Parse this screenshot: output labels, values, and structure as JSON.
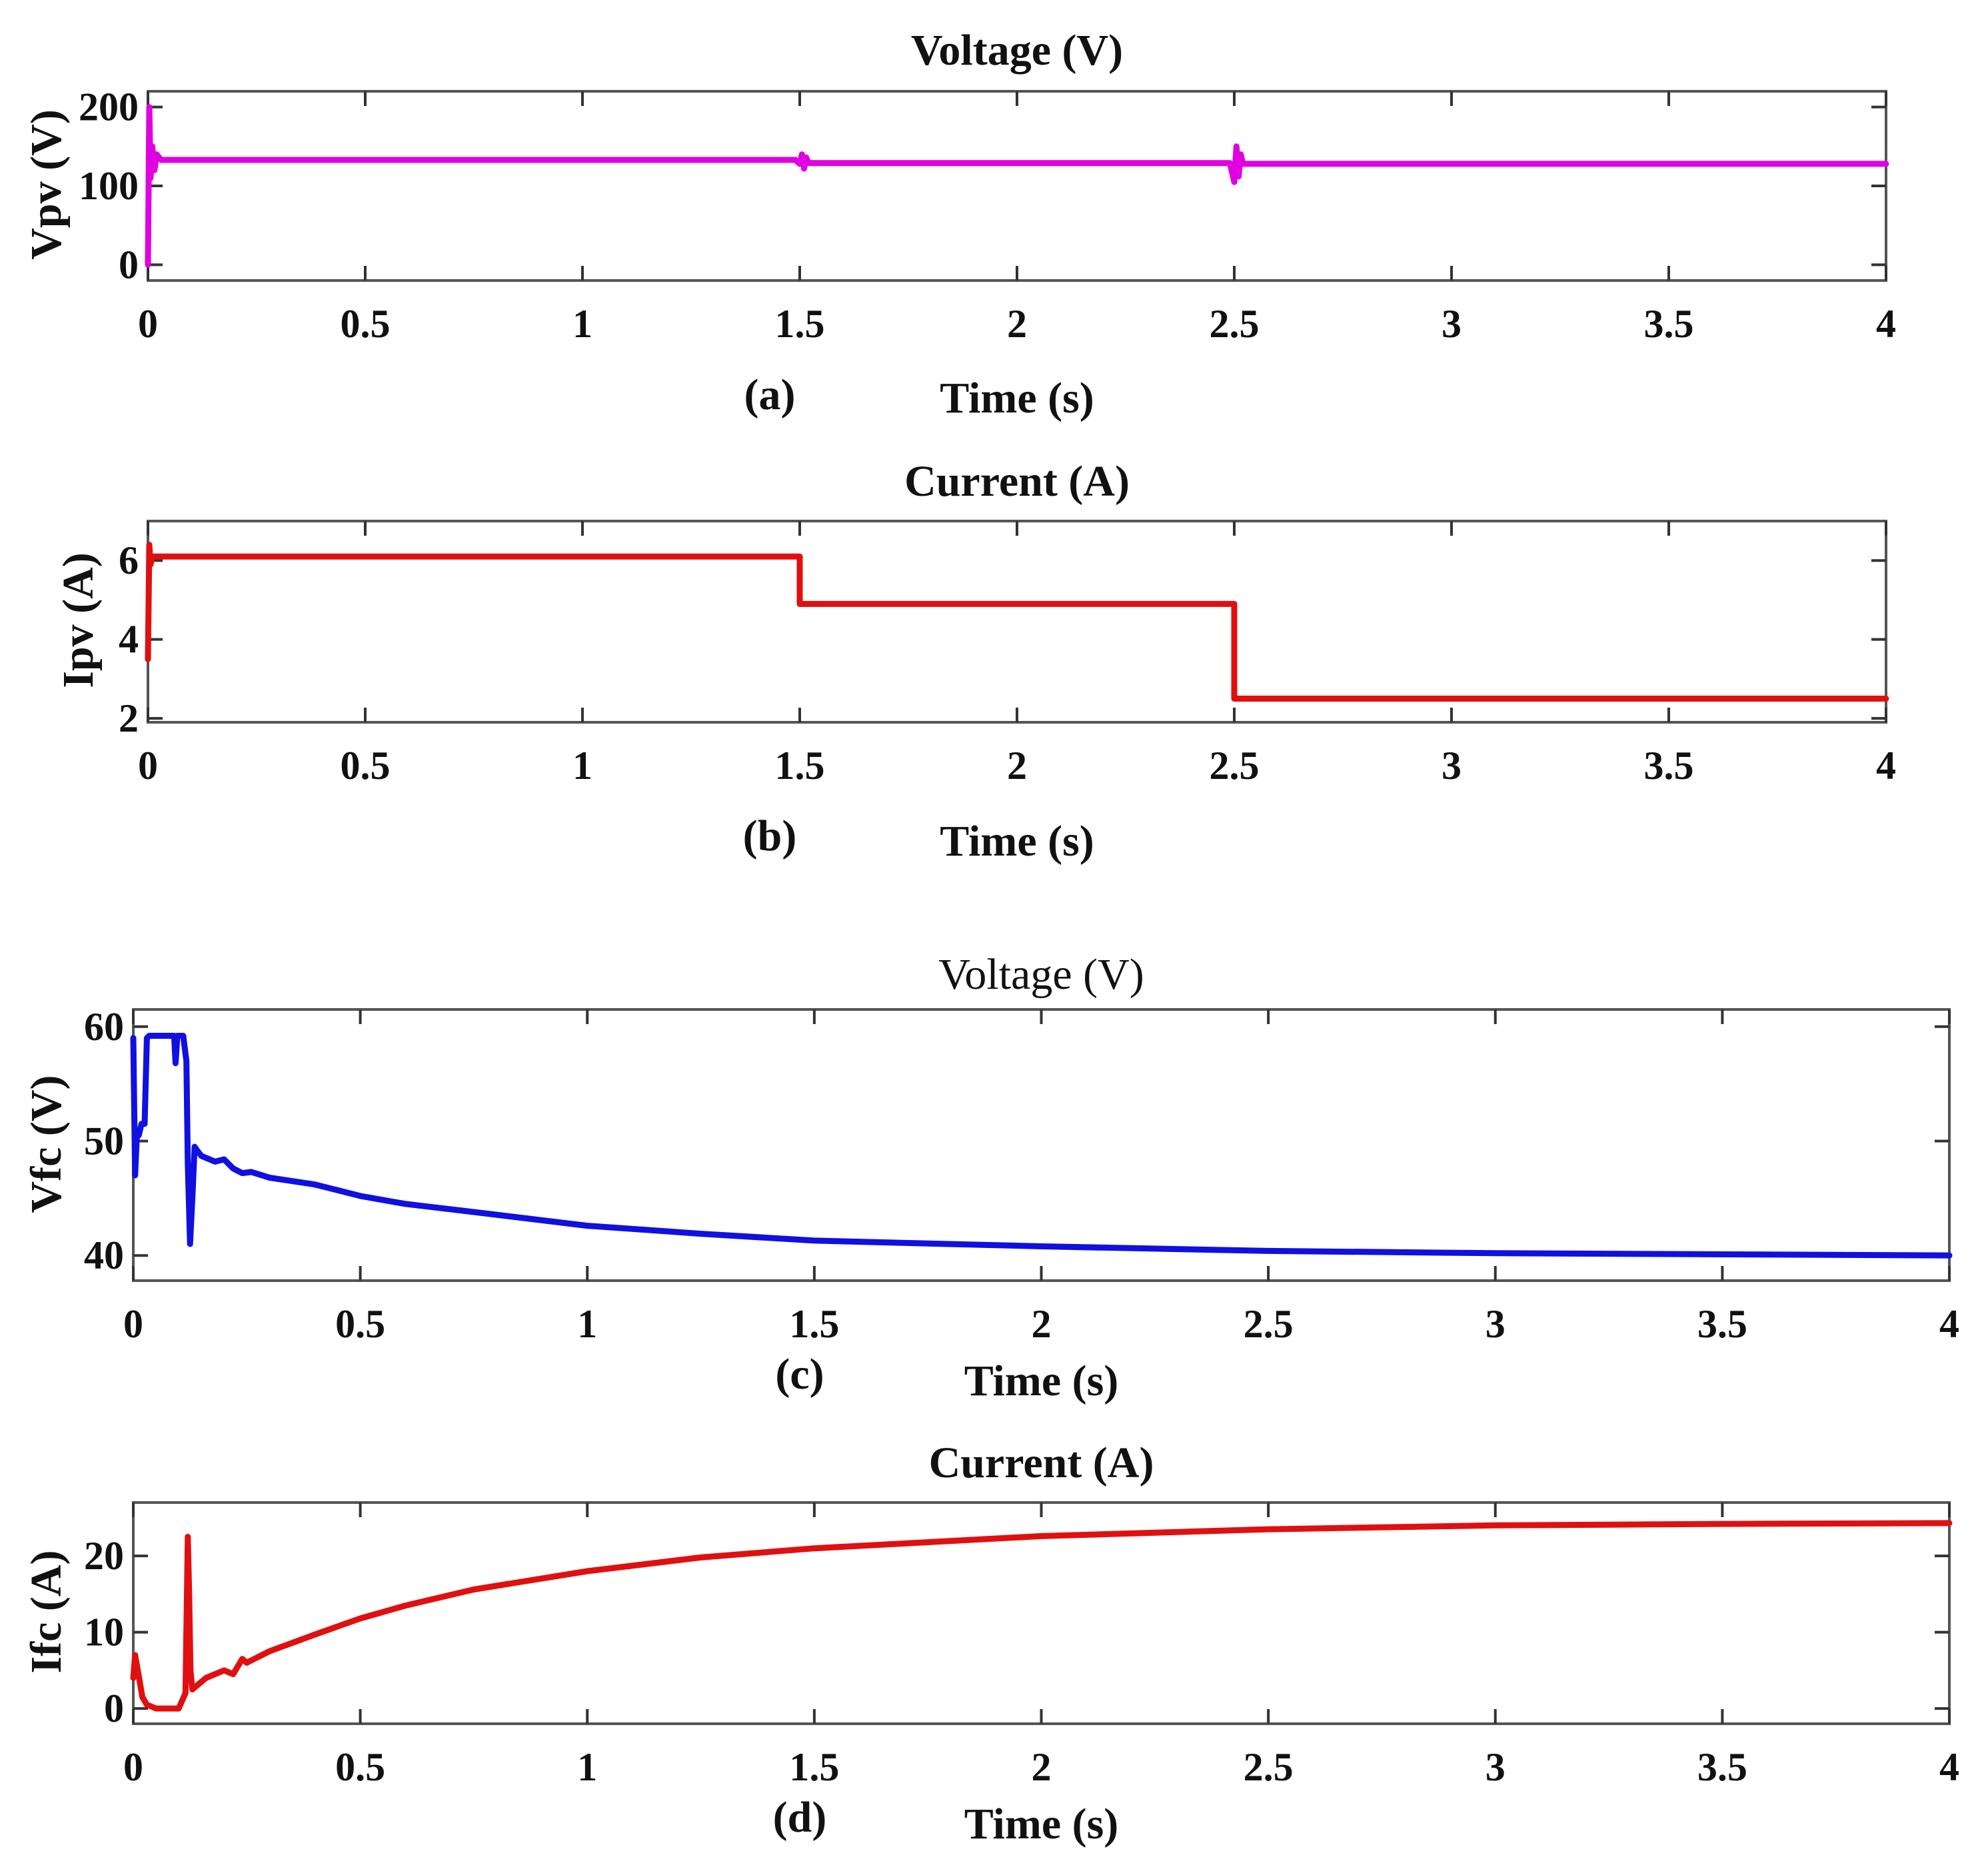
{
  "chart_data": [
    {
      "id": "a",
      "type": "line",
      "title": "Voltage (V)",
      "panel_label": "(a)",
      "xlabel": "Time (s)",
      "ylabel": "Vpv (V)",
      "xlim": [
        0,
        4
      ],
      "ylim": [
        -20,
        220
      ],
      "xticks": [
        0,
        0.5,
        1,
        1.5,
        2,
        2.5,
        3,
        3.5,
        4
      ],
      "xtick_labels": [
        "0",
        "0.5",
        "1",
        "1.5",
        "2",
        "2.5",
        "3",
        "3.5",
        "4"
      ],
      "yticks": [
        0,
        100,
        200
      ],
      "ytick_labels": [
        "0",
        "100",
        "200"
      ],
      "series": [
        {
          "name": "Vpv",
          "color": "#e000e0",
          "x": [
            0,
            0.003,
            0.006,
            0.01,
            0.015,
            0.02,
            0.03,
            0.05,
            1.49,
            1.5,
            1.505,
            1.51,
            1.515,
            1.52,
            2.49,
            2.5,
            2.505,
            2.51,
            2.515,
            2.52,
            4
          ],
          "y": [
            0,
            200,
            110,
            150,
            120,
            140,
            133,
            133,
            133,
            128,
            140,
            122,
            136,
            129,
            129,
            105,
            150,
            112,
            140,
            128,
            128
          ]
        }
      ]
    },
    {
      "id": "b",
      "type": "line",
      "title": "Current (A)",
      "panel_label": "(b)",
      "xlabel": "Time (s)",
      "ylabel": "Ipv (A)",
      "xlim": [
        0,
        4
      ],
      "ylim": [
        1.9,
        7.0
      ],
      "xticks": [
        0,
        0.5,
        1,
        1.5,
        2,
        2.5,
        3,
        3.5,
        4
      ],
      "xtick_labels": [
        "0",
        "0.5",
        "1",
        "1.5",
        "2",
        "2.5",
        "3",
        "3.5",
        "4"
      ],
      "yticks": [
        2,
        4,
        6
      ],
      "ytick_labels": [
        "2",
        "4",
        "6"
      ],
      "series": [
        {
          "name": "Ipv",
          "color": "#e01010",
          "x": [
            0,
            0.003,
            0.006,
            0.01,
            0.02,
            1.5,
            1.5,
            2.5,
            2.5,
            4
          ],
          "y": [
            3.5,
            6.4,
            5.9,
            6.1,
            6.1,
            6.1,
            4.9,
            4.9,
            2.5,
            2.5
          ]
        }
      ]
    },
    {
      "id": "c",
      "type": "line",
      "title": "Voltage (V)",
      "title_weight": "normal",
      "panel_label": "(c)",
      "xlabel": "Time (s)",
      "ylabel": "Vfc (V)",
      "xlim": [
        0,
        4
      ],
      "ylim": [
        37.8,
        61.5
      ],
      "xticks": [
        0,
        0.5,
        1,
        1.5,
        2,
        2.5,
        3,
        3.5,
        4
      ],
      "xtick_labels": [
        "0",
        "0.5",
        "1",
        "1.5",
        "2",
        "2.5",
        "3",
        "3.5",
        "4"
      ],
      "yticks": [
        40,
        50,
        60
      ],
      "ytick_labels": [
        "40",
        "50",
        "60"
      ],
      "series": [
        {
          "name": "Vfc",
          "color": "#1010e0",
          "x": [
            0,
            0.004,
            0.008,
            0.012,
            0.018,
            0.025,
            0.03,
            0.035,
            0.09,
            0.093,
            0.097,
            0.1,
            0.11,
            0.117,
            0.12,
            0.125,
            0.13,
            0.135,
            0.14,
            0.15,
            0.18,
            0.2,
            0.22,
            0.24,
            0.26,
            0.3,
            0.4,
            0.5,
            0.6,
            0.75,
            1,
            1.25,
            1.5,
            2,
            2.5,
            3,
            3.5,
            4
          ],
          "y": [
            59,
            47,
            50.5,
            50.5,
            51.5,
            51.5,
            59,
            59.2,
            59.2,
            56.8,
            59.2,
            59.2,
            59.2,
            57,
            48,
            41,
            45,
            49.5,
            49.2,
            48.7,
            48.2,
            48.4,
            47.6,
            47.2,
            47.3,
            46.8,
            46.2,
            45.2,
            44.5,
            43.8,
            42.6,
            41.9,
            41.3,
            40.8,
            40.4,
            40.2,
            40.1,
            40
          ]
        }
      ]
    },
    {
      "id": "d",
      "type": "line",
      "title": "Current (A)",
      "panel_label": "(d)",
      "xlabel": "Time (s)",
      "ylabel": "Ifc (A)",
      "xlim": [
        0,
        4
      ],
      "ylim": [
        -2,
        27
      ],
      "xticks": [
        0,
        0.5,
        1,
        1.5,
        2,
        2.5,
        3,
        3.5,
        4
      ],
      "xtick_labels": [
        "0",
        "0.5",
        "1",
        "1.5",
        "2",
        "2.5",
        "3",
        "3.5",
        "4"
      ],
      "yticks": [
        0,
        10,
        20
      ],
      "ytick_labels": [
        "0",
        "10",
        "20"
      ],
      "series": [
        {
          "name": "Ifc",
          "color": "#e01010",
          "x": [
            0,
            0.004,
            0.01,
            0.02,
            0.03,
            0.05,
            0.08,
            0.1,
            0.115,
            0.12,
            0.123,
            0.126,
            0.13,
            0.14,
            0.16,
            0.2,
            0.22,
            0.23,
            0.24,
            0.25,
            0.3,
            0.4,
            0.5,
            0.6,
            0.75,
            1,
            1.25,
            1.5,
            2,
            2.5,
            3,
            3.5,
            4
          ],
          "y": [
            4,
            7,
            5,
            1.5,
            0.5,
            0,
            0,
            0,
            2,
            22.5,
            15,
            5,
            2.5,
            3,
            4,
            5,
            4.5,
            5.5,
            6.5,
            6,
            7.5,
            9.7,
            11.8,
            13.5,
            15.6,
            18,
            19.8,
            21,
            22.6,
            23.5,
            24,
            24.2,
            24.3
          ]
        }
      ]
    }
  ]
}
